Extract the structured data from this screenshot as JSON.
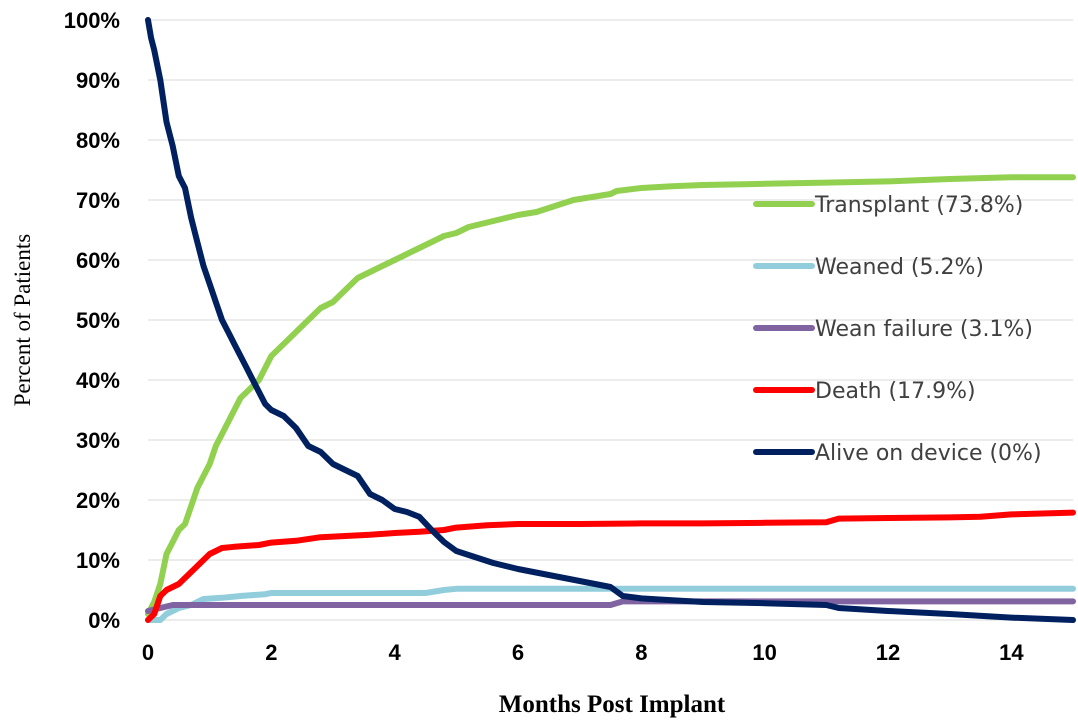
{
  "chart_data": {
    "type": "line",
    "xlabel": "Months Post Implant",
    "ylabel": "Percent of Patients",
    "xlim": [
      0,
      15
    ],
    "ylim": [
      0,
      100
    ],
    "x_ticks": [
      0,
      2,
      4,
      6,
      8,
      10,
      12,
      14
    ],
    "y_ticks": [
      0,
      10,
      20,
      30,
      40,
      50,
      60,
      70,
      80,
      90,
      100
    ],
    "y_tick_labels": [
      "0%",
      "10%",
      "20%",
      "30%",
      "40%",
      "50%",
      "60%",
      "70%",
      "80%",
      "90%",
      "100%"
    ],
    "grid": "horizontal",
    "legend_position": "right",
    "series": [
      {
        "name": "Transplant (73.8%)",
        "color": "#92d050",
        "x": [
          0,
          0.1,
          0.2,
          0.3,
          0.4,
          0.5,
          0.6,
          0.7,
          0.8,
          0.9,
          1.0,
          1.1,
          1.2,
          1.3,
          1.4,
          1.5,
          1.6,
          1.7,
          1.8,
          1.9,
          2.0,
          2.2,
          2.4,
          2.6,
          2.8,
          3.0,
          3.2,
          3.4,
          3.6,
          3.8,
          4.0,
          4.2,
          4.4,
          4.6,
          4.8,
          5.0,
          5.2,
          5.4,
          5.6,
          5.8,
          6.0,
          6.3,
          6.6,
          6.9,
          7.2,
          7.5,
          7.6,
          8.0,
          8.5,
          9.0,
          10.0,
          11.0,
          12.0,
          13.0,
          14.0,
          15.0
        ],
        "y": [
          1,
          3,
          6,
          11,
          13,
          15,
          16,
          19,
          22,
          24,
          26,
          29,
          31,
          33,
          35,
          37,
          38,
          39,
          40,
          42,
          44,
          46,
          48,
          50,
          52,
          53,
          55,
          57,
          58,
          59,
          60,
          61,
          62,
          63,
          64,
          64.5,
          65.5,
          66,
          66.5,
          67,
          67.5,
          68,
          69,
          70,
          70.5,
          71,
          71.5,
          72,
          72.3,
          72.5,
          72.7,
          72.9,
          73.1,
          73.5,
          73.8,
          73.8
        ]
      },
      {
        "name": "Weaned (5.2%)",
        "color": "#92cddc",
        "x": [
          0,
          0.2,
          0.3,
          0.5,
          0.7,
          0.9,
          1.2,
          1.5,
          1.9,
          2.0,
          3.0,
          4.0,
          4.5,
          4.8,
          5.0,
          6.0,
          8.0,
          10.0,
          12.0,
          15.0
        ],
        "y": [
          0,
          0,
          1,
          2,
          2.5,
          3.5,
          3.7,
          4,
          4.3,
          4.5,
          4.5,
          4.5,
          4.5,
          5,
          5.2,
          5.2,
          5.2,
          5.2,
          5.2,
          5.2
        ]
      },
      {
        "name": "Wean failure (3.1%)",
        "color": "#8064a2",
        "x": [
          0,
          0.2,
          0.4,
          1.0,
          2.0,
          4.0,
          6.0,
          7.5,
          7.7,
          10.0,
          15.0
        ],
        "y": [
          1.5,
          2,
          2.5,
          2.5,
          2.5,
          2.5,
          2.5,
          2.5,
          3.1,
          3.1,
          3.1
        ]
      },
      {
        "name": "Death (17.9%)",
        "color": "#ff0000",
        "x": [
          0,
          0.1,
          0.2,
          0.3,
          0.5,
          0.7,
          0.9,
          1.0,
          1.2,
          1.4,
          1.8,
          2.0,
          2.4,
          2.8,
          3.2,
          3.6,
          4.0,
          4.4,
          4.8,
          5.0,
          5.5,
          6.0,
          7.0,
          8.0,
          9.0,
          10.0,
          11.0,
          11.2,
          12.0,
          13.0,
          13.5,
          14.0,
          15.0
        ],
        "y": [
          0,
          1,
          4,
          5,
          6,
          8,
          10,
          11,
          12,
          12.2,
          12.5,
          12.9,
          13.2,
          13.8,
          14,
          14.2,
          14.5,
          14.7,
          15,
          15.4,
          15.8,
          16,
          16,
          16.1,
          16.1,
          16.2,
          16.3,
          16.9,
          17,
          17.1,
          17.2,
          17.6,
          17.9
        ]
      },
      {
        "name": "Alive on device (0%)",
        "color": "#002060",
        "x": [
          0,
          0.05,
          0.1,
          0.2,
          0.3,
          0.4,
          0.5,
          0.6,
          0.7,
          0.8,
          0.9,
          1.0,
          1.1,
          1.2,
          1.3,
          1.4,
          1.5,
          1.6,
          1.7,
          1.8,
          1.9,
          2.0,
          2.2,
          2.4,
          2.6,
          2.8,
          3.0,
          3.2,
          3.4,
          3.6,
          3.8,
          4.0,
          4.2,
          4.4,
          4.6,
          4.8,
          5.0,
          5.3,
          5.6,
          6.0,
          6.5,
          7.0,
          7.5,
          7.7,
          8.0,
          8.5,
          9.0,
          10.0,
          11.0,
          11.2,
          12.0,
          13.0,
          14.0,
          15.0
        ],
        "y": [
          100,
          97,
          95,
          90,
          83,
          79,
          74,
          72,
          67,
          63,
          59,
          56,
          53,
          50,
          48,
          46,
          44,
          42,
          40,
          38,
          36,
          35,
          34,
          32,
          29,
          28,
          26,
          25,
          24,
          21,
          20,
          18.5,
          18,
          17.2,
          15,
          13,
          11.5,
          10.5,
          9.5,
          8.5,
          7.5,
          6.5,
          5.5,
          4,
          3.6,
          3.3,
          3,
          2.8,
          2.5,
          2,
          1.5,
          1,
          0.4,
          0
        ]
      }
    ]
  }
}
